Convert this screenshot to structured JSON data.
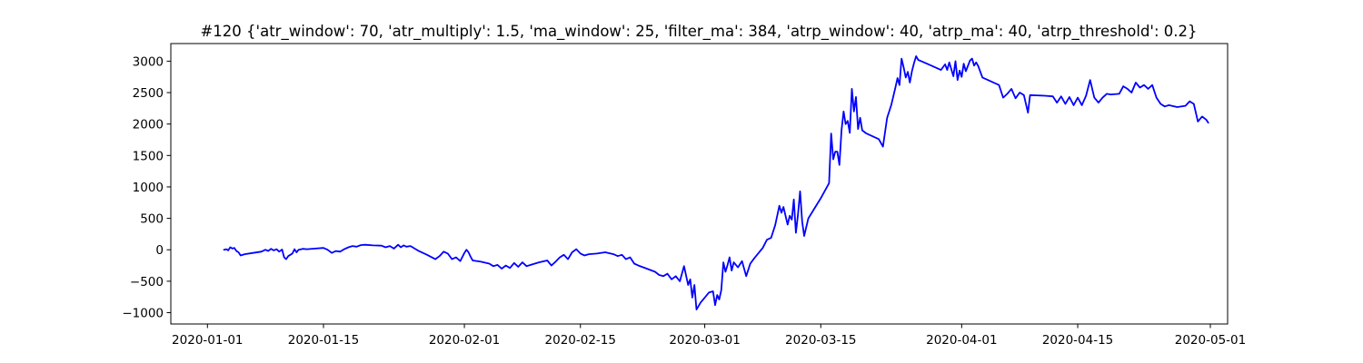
{
  "chart_data": {
    "type": "line",
    "title": "#120 {'atr_window': 70, 'atr_multiply': 1.5, 'ma_window': 25, 'filter_ma': 384, 'atrp_window': 40, 'atrp_ma': 40, 'atrp_threshold': 0.2}",
    "xlabel": "",
    "ylabel": "",
    "x_type": "date",
    "xlim": [
      "2019-12-27T14:00",
      "2020-05-03T02:00"
    ],
    "ylim": [
      -1180,
      3280
    ],
    "grid": false,
    "x_ticks": [
      "2020-01-01",
      "2020-01-15",
      "2020-02-01",
      "2020-02-15",
      "2020-03-01",
      "2020-03-15",
      "2020-04-01",
      "2020-04-15",
      "2020-05-01"
    ],
    "y_ticks": [
      -1000,
      -500,
      0,
      500,
      1000,
      1500,
      2000,
      2500,
      3000
    ],
    "series": [
      {
        "color": "#0000ff",
        "points": [
          [
            "2020-01-03T00:00",
            0
          ],
          [
            "2020-01-03T07:00",
            10
          ],
          [
            "2020-01-03T12:00",
            -10
          ],
          [
            "2020-01-03T18:00",
            40
          ],
          [
            "2020-01-04T00:00",
            20
          ],
          [
            "2020-01-04T06:00",
            30
          ],
          [
            "2020-01-04T12:00",
            -20
          ],
          [
            "2020-01-04T18:00",
            -40
          ],
          [
            "2020-01-05T00:00",
            -90
          ],
          [
            "2020-01-05T12:00",
            -70
          ],
          [
            "2020-01-06T12:00",
            -50
          ],
          [
            "2020-01-07T12:00",
            -30
          ],
          [
            "2020-01-08T00:00",
            0
          ],
          [
            "2020-01-08T08:00",
            -20
          ],
          [
            "2020-01-08T16:00",
            15
          ],
          [
            "2020-01-09T00:00",
            -10
          ],
          [
            "2020-01-09T08:00",
            10
          ],
          [
            "2020-01-09T16:00",
            -30
          ],
          [
            "2020-01-10T00:00",
            5
          ],
          [
            "2020-01-10T06:00",
            -120
          ],
          [
            "2020-01-10T12:00",
            -150
          ],
          [
            "2020-01-10T18:00",
            -100
          ],
          [
            "2020-01-11T00:00",
            -80
          ],
          [
            "2020-01-11T06:00",
            -60
          ],
          [
            "2020-01-11T12:00",
            10
          ],
          [
            "2020-01-11T18:00",
            -40
          ],
          [
            "2020-01-12T00:00",
            0
          ],
          [
            "2020-01-12T12:00",
            15
          ],
          [
            "2020-01-13T00:00",
            10
          ],
          [
            "2020-01-14T00:00",
            20
          ],
          [
            "2020-01-15T00:00",
            30
          ],
          [
            "2020-01-15T12:00",
            0
          ],
          [
            "2020-01-16T00:00",
            -50
          ],
          [
            "2020-01-16T12:00",
            -20
          ],
          [
            "2020-01-17T00:00",
            -30
          ],
          [
            "2020-01-17T12:00",
            10
          ],
          [
            "2020-01-18T00:00",
            40
          ],
          [
            "2020-01-18T12:00",
            60
          ],
          [
            "2020-01-19T00:00",
            50
          ],
          [
            "2020-01-19T12:00",
            75
          ],
          [
            "2020-01-20T00:00",
            80
          ],
          [
            "2020-01-21T00:00",
            70
          ],
          [
            "2020-01-22T00:00",
            65
          ],
          [
            "2020-01-22T12:00",
            40
          ],
          [
            "2020-01-23T00:00",
            60
          ],
          [
            "2020-01-23T12:00",
            20
          ],
          [
            "2020-01-24T00:00",
            80
          ],
          [
            "2020-01-24T08:00",
            40
          ],
          [
            "2020-01-24T16:00",
            70
          ],
          [
            "2020-01-25T00:00",
            50
          ],
          [
            "2020-01-25T12:00",
            60
          ],
          [
            "2020-01-26T00:00",
            20
          ],
          [
            "2020-01-26T12:00",
            -20
          ],
          [
            "2020-01-27T12:00",
            -80
          ],
          [
            "2020-01-28T12:00",
            -150
          ],
          [
            "2020-01-29T00:00",
            -100
          ],
          [
            "2020-01-29T12:00",
            -30
          ],
          [
            "2020-01-30T00:00",
            -60
          ],
          [
            "2020-01-30T12:00",
            -150
          ],
          [
            "2020-01-31T00:00",
            -120
          ],
          [
            "2020-01-31T12:00",
            -180
          ],
          [
            "2020-02-01T00:00",
            -50
          ],
          [
            "2020-02-01T06:00",
            0
          ],
          [
            "2020-02-01T12:00",
            -40
          ],
          [
            "2020-02-01T18:00",
            -110
          ],
          [
            "2020-02-02T00:00",
            -170
          ],
          [
            "2020-02-03T00:00",
            -190
          ],
          [
            "2020-02-04T00:00",
            -220
          ],
          [
            "2020-02-04T12:00",
            -260
          ],
          [
            "2020-02-05T00:00",
            -240
          ],
          [
            "2020-02-05T12:00",
            -300
          ],
          [
            "2020-02-06T00:00",
            -250
          ],
          [
            "2020-02-06T12:00",
            -290
          ],
          [
            "2020-02-07T00:00",
            -210
          ],
          [
            "2020-02-07T12:00",
            -270
          ],
          [
            "2020-02-08T00:00",
            -200
          ],
          [
            "2020-02-08T12:00",
            -260
          ],
          [
            "2020-02-09T00:00",
            -240
          ],
          [
            "2020-02-10T00:00",
            -200
          ],
          [
            "2020-02-11T00:00",
            -170
          ],
          [
            "2020-02-11T12:00",
            -250
          ],
          [
            "2020-02-12T00:00",
            -190
          ],
          [
            "2020-02-12T12:00",
            -120
          ],
          [
            "2020-02-13T00:00",
            -80
          ],
          [
            "2020-02-13T12:00",
            -150
          ],
          [
            "2020-02-14T00:00",
            -40
          ],
          [
            "2020-02-14T12:00",
            10
          ],
          [
            "2020-02-15T00:00",
            -60
          ],
          [
            "2020-02-15T12:00",
            -90
          ],
          [
            "2020-02-16T00:00",
            -70
          ],
          [
            "2020-02-17T00:00",
            -60
          ],
          [
            "2020-02-18T00:00",
            -40
          ],
          [
            "2020-02-19T00:00",
            -70
          ],
          [
            "2020-02-19T12:00",
            -100
          ],
          [
            "2020-02-20T00:00",
            -80
          ],
          [
            "2020-02-20T12:00",
            -150
          ],
          [
            "2020-02-21T00:00",
            -120
          ],
          [
            "2020-02-21T12:00",
            -220
          ],
          [
            "2020-02-22T00:00",
            -250
          ],
          [
            "2020-02-23T00:00",
            -300
          ],
          [
            "2020-02-24T00:00",
            -350
          ],
          [
            "2020-02-24T12:00",
            -400
          ],
          [
            "2020-02-25T00:00",
            -420
          ],
          [
            "2020-02-25T12:00",
            -380
          ],
          [
            "2020-02-26T00:00",
            -470
          ],
          [
            "2020-02-26T12:00",
            -420
          ],
          [
            "2020-02-27T00:00",
            -500
          ],
          [
            "2020-02-27T12:00",
            -260
          ],
          [
            "2020-02-28T00:00",
            -560
          ],
          [
            "2020-02-28T06:00",
            -470
          ],
          [
            "2020-02-28T12:00",
            -760
          ],
          [
            "2020-02-28T18:00",
            -560
          ],
          [
            "2020-02-29T00:00",
            -950
          ],
          [
            "2020-02-29T12:00",
            -840
          ],
          [
            "2020-03-01T00:00",
            -760
          ],
          [
            "2020-03-01T12:00",
            -680
          ],
          [
            "2020-03-02T00:00",
            -660
          ],
          [
            "2020-03-02T06:00",
            -880
          ],
          [
            "2020-03-02T12:00",
            -720
          ],
          [
            "2020-03-02T18:00",
            -790
          ],
          [
            "2020-03-03T00:00",
            -640
          ],
          [
            "2020-03-03T06:00",
            -200
          ],
          [
            "2020-03-03T12:00",
            -350
          ],
          [
            "2020-03-03T18:00",
            -240
          ],
          [
            "2020-03-04T00:00",
            -120
          ],
          [
            "2020-03-04T06:00",
            -330
          ],
          [
            "2020-03-04T12:00",
            -200
          ],
          [
            "2020-03-05T00:00",
            -280
          ],
          [
            "2020-03-05T12:00",
            -180
          ],
          [
            "2020-03-06T00:00",
            -420
          ],
          [
            "2020-03-06T12:00",
            -220
          ],
          [
            "2020-03-07T00:00",
            -130
          ],
          [
            "2020-03-08T00:00",
            30
          ],
          [
            "2020-03-08T12:00",
            160
          ],
          [
            "2020-03-09T00:00",
            190
          ],
          [
            "2020-03-09T12:00",
            390
          ],
          [
            "2020-03-10T00:00",
            700
          ],
          [
            "2020-03-10T06:00",
            590
          ],
          [
            "2020-03-10T12:00",
            680
          ],
          [
            "2020-03-11T00:00",
            400
          ],
          [
            "2020-03-11T06:00",
            540
          ],
          [
            "2020-03-11T12:00",
            480
          ],
          [
            "2020-03-11T18:00",
            800
          ],
          [
            "2020-03-12T00:00",
            270
          ],
          [
            "2020-03-12T06:00",
            560
          ],
          [
            "2020-03-12T12:00",
            930
          ],
          [
            "2020-03-12T18:00",
            450
          ],
          [
            "2020-03-13T00:00",
            220
          ],
          [
            "2020-03-13T12:00",
            500
          ],
          [
            "2020-03-15T00:00",
            820
          ],
          [
            "2020-03-16T00:00",
            1060
          ],
          [
            "2020-03-16T06:00",
            1850
          ],
          [
            "2020-03-16T12:00",
            1440
          ],
          [
            "2020-03-16T18:00",
            1560
          ],
          [
            "2020-03-17T00:00",
            1560
          ],
          [
            "2020-03-17T06:00",
            1350
          ],
          [
            "2020-03-17T12:00",
            1900
          ],
          [
            "2020-03-17T18:00",
            2200
          ],
          [
            "2020-03-18T00:00",
            2000
          ],
          [
            "2020-03-18T06:00",
            2050
          ],
          [
            "2020-03-18T12:00",
            1860
          ],
          [
            "2020-03-18T18:00",
            2560
          ],
          [
            "2020-03-19T00:00",
            2200
          ],
          [
            "2020-03-19T06:00",
            2430
          ],
          [
            "2020-03-19T12:00",
            1920
          ],
          [
            "2020-03-19T18:00",
            2100
          ],
          [
            "2020-03-20T00:00",
            1900
          ],
          [
            "2020-03-20T12:00",
            1850
          ],
          [
            "2020-03-22T00:00",
            1760
          ],
          [
            "2020-03-22T12:00",
            1640
          ],
          [
            "2020-03-23T00:00",
            2100
          ],
          [
            "2020-03-23T12:00",
            2300
          ],
          [
            "2020-03-24T00:00",
            2580
          ],
          [
            "2020-03-24T06:00",
            2730
          ],
          [
            "2020-03-24T12:00",
            2620
          ],
          [
            "2020-03-24T18:00",
            3040
          ],
          [
            "2020-03-25T00:00",
            2900
          ],
          [
            "2020-03-25T06:00",
            2740
          ],
          [
            "2020-03-25T12:00",
            2830
          ],
          [
            "2020-03-25T18:00",
            2660
          ],
          [
            "2020-03-26T00:00",
            2840
          ],
          [
            "2020-03-26T06:00",
            2970
          ],
          [
            "2020-03-26T12:00",
            3080
          ],
          [
            "2020-03-26T18:00",
            3020
          ],
          [
            "2020-03-28T00:00",
            2950
          ],
          [
            "2020-03-29T12:00",
            2860
          ],
          [
            "2020-03-30T00:00",
            2950
          ],
          [
            "2020-03-30T06:00",
            2860
          ],
          [
            "2020-03-30T12:00",
            2980
          ],
          [
            "2020-03-31T00:00",
            2760
          ],
          [
            "2020-03-31T06:00",
            3000
          ],
          [
            "2020-03-31T12:00",
            2700
          ],
          [
            "2020-03-31T18:00",
            2850
          ],
          [
            "2020-04-01T00:00",
            2750
          ],
          [
            "2020-04-01T06:00",
            2960
          ],
          [
            "2020-04-01T12:00",
            2840
          ],
          [
            "2020-04-02T00:00",
            3010
          ],
          [
            "2020-04-02T06:00",
            3040
          ],
          [
            "2020-04-02T12:00",
            2930
          ],
          [
            "2020-04-02T18:00",
            2980
          ],
          [
            "2020-04-03T00:00",
            2920
          ],
          [
            "2020-04-03T12:00",
            2740
          ],
          [
            "2020-04-05T12:00",
            2620
          ],
          [
            "2020-04-06T00:00",
            2420
          ],
          [
            "2020-04-06T12:00",
            2480
          ],
          [
            "2020-04-07T00:00",
            2560
          ],
          [
            "2020-04-07T12:00",
            2410
          ],
          [
            "2020-04-08T00:00",
            2500
          ],
          [
            "2020-04-08T12:00",
            2460
          ],
          [
            "2020-04-09T00:00",
            2180
          ],
          [
            "2020-04-09T06:00",
            2460
          ],
          [
            "2020-04-11T00:00",
            2450
          ],
          [
            "2020-04-12T00:00",
            2440
          ],
          [
            "2020-04-12T12:00",
            2340
          ],
          [
            "2020-04-13T00:00",
            2440
          ],
          [
            "2020-04-13T12:00",
            2320
          ],
          [
            "2020-04-14T00:00",
            2430
          ],
          [
            "2020-04-14T12:00",
            2300
          ],
          [
            "2020-04-15T00:00",
            2420
          ],
          [
            "2020-04-15T12:00",
            2300
          ],
          [
            "2020-04-16T00:00",
            2450
          ],
          [
            "2020-04-16T12:00",
            2700
          ],
          [
            "2020-04-17T00:00",
            2420
          ],
          [
            "2020-04-17T12:00",
            2340
          ],
          [
            "2020-04-18T00:00",
            2420
          ],
          [
            "2020-04-18T12:00",
            2480
          ],
          [
            "2020-04-19T00:00",
            2470
          ],
          [
            "2020-04-20T00:00",
            2480
          ],
          [
            "2020-04-20T12:00",
            2600
          ],
          [
            "2020-04-21T00:00",
            2560
          ],
          [
            "2020-04-21T12:00",
            2500
          ],
          [
            "2020-04-22T00:00",
            2660
          ],
          [
            "2020-04-22T12:00",
            2580
          ],
          [
            "2020-04-23T00:00",
            2620
          ],
          [
            "2020-04-23T12:00",
            2560
          ],
          [
            "2020-04-24T00:00",
            2620
          ],
          [
            "2020-04-24T12:00",
            2420
          ],
          [
            "2020-04-25T00:00",
            2320
          ],
          [
            "2020-04-25T12:00",
            2280
          ],
          [
            "2020-04-26T00:00",
            2300
          ],
          [
            "2020-04-27T00:00",
            2270
          ],
          [
            "2020-04-28T00:00",
            2290
          ],
          [
            "2020-04-28T12:00",
            2360
          ],
          [
            "2020-04-29T00:00",
            2320
          ],
          [
            "2020-04-29T12:00",
            2040
          ],
          [
            "2020-04-30T00:00",
            2120
          ],
          [
            "2020-04-30T12:00",
            2070
          ],
          [
            "2020-04-30T18:00",
            2020
          ]
        ]
      }
    ]
  }
}
